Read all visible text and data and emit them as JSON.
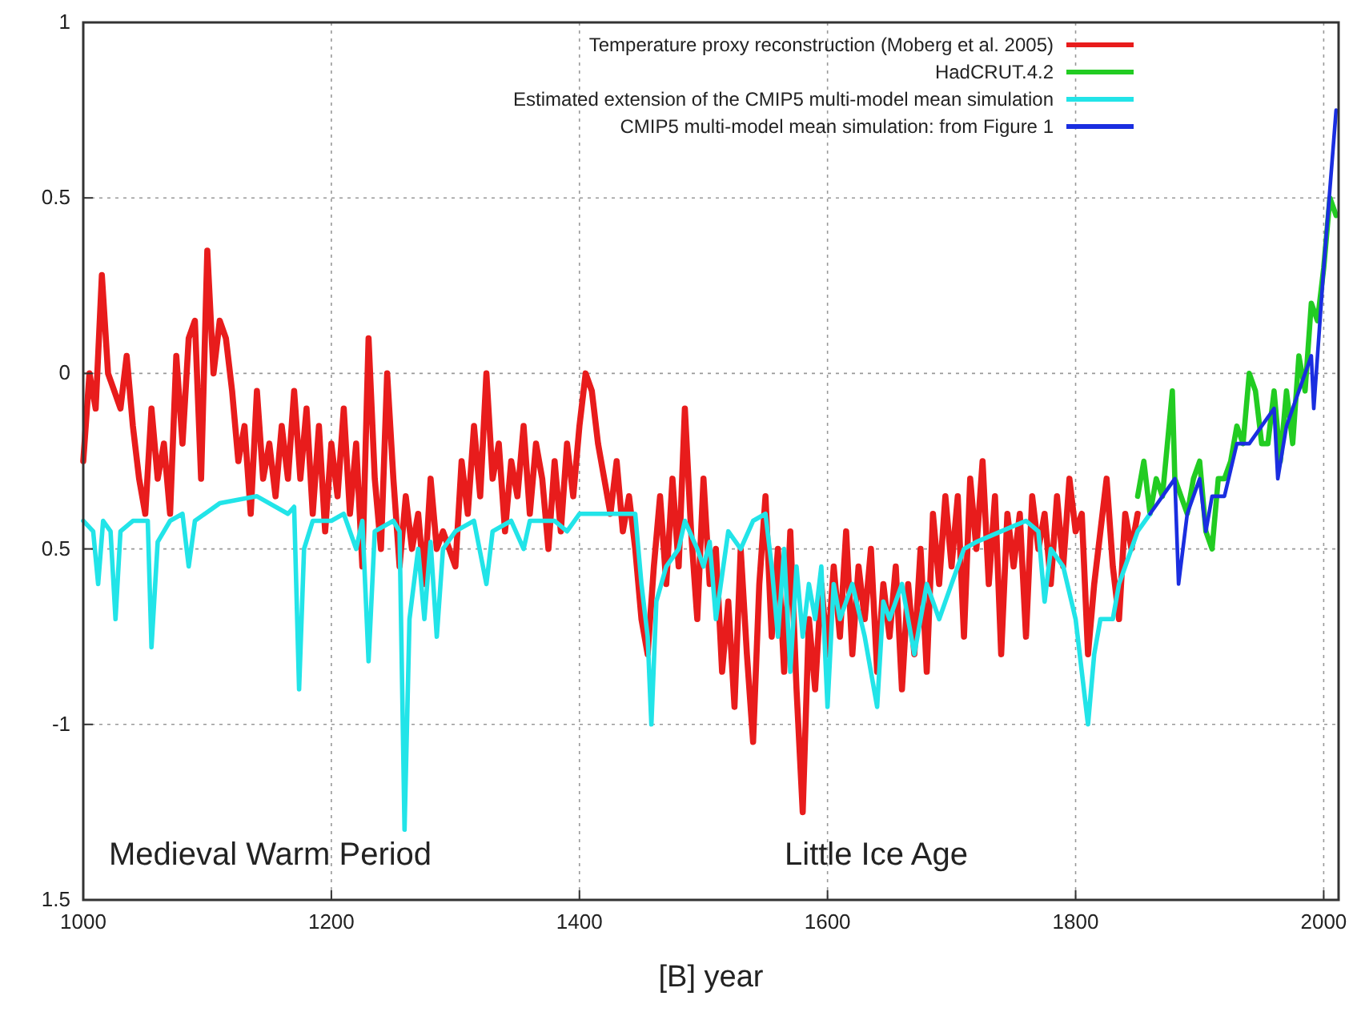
{
  "chart_data": {
    "type": "line",
    "xlabel": "[B]   year",
    "xlim": [
      1000,
      2012
    ],
    "xticks": [
      1000,
      1200,
      1400,
      1600,
      1800,
      2000
    ],
    "ylim": [
      -1.5,
      1
    ],
    "yticks": [
      {
        "value": -1.5,
        "label": "1.5"
      },
      -1,
      {
        "value": -0.5,
        "label": "0.5"
      },
      0,
      0.5,
      1
    ],
    "grid": true,
    "legend": "top right",
    "line_style": "solid",
    "marker": "none",
    "annotations": [
      "Medieval Warm Period",
      "Little Ice Age"
    ],
    "series": [
      {
        "name": "Temperature proxy reconstruction (Moberg et al. 2005)",
        "color": "#e81c1c",
        "x": [
          1000,
          1005,
          1010,
          1015,
          1020,
          1025,
          1030,
          1035,
          1040,
          1045,
          1050,
          1055,
          1060,
          1065,
          1070,
          1075,
          1080,
          1085,
          1090,
          1095,
          1100,
          1105,
          1110,
          1115,
          1120,
          1125,
          1130,
          1135,
          1140,
          1145,
          1150,
          1155,
          1160,
          1165,
          1170,
          1175,
          1180,
          1185,
          1190,
          1195,
          1200,
          1205,
          1210,
          1215,
          1220,
          1225,
          1230,
          1235,
          1240,
          1245,
          1250,
          1255,
          1260,
          1265,
          1270,
          1275,
          1280,
          1285,
          1290,
          1300,
          1305,
          1310,
          1315,
          1320,
          1325,
          1330,
          1335,
          1340,
          1345,
          1350,
          1355,
          1360,
          1365,
          1370,
          1375,
          1380,
          1385,
          1390,
          1395,
          1400,
          1405,
          1410,
          1415,
          1420,
          1425,
          1430,
          1435,
          1440,
          1445,
          1450,
          1455,
          1460,
          1465,
          1470,
          1475,
          1480,
          1485,
          1490,
          1495,
          1500,
          1505,
          1510,
          1515,
          1520,
          1525,
          1530,
          1535,
          1540,
          1545,
          1550,
          1555,
          1560,
          1565,
          1570,
          1575,
          1580,
          1585,
          1590,
          1595,
          1600,
          1605,
          1610,
          1615,
          1620,
          1625,
          1630,
          1635,
          1640,
          1645,
          1650,
          1655,
          1660,
          1665,
          1670,
          1675,
          1680,
          1685,
          1690,
          1695,
          1700,
          1705,
          1710,
          1715,
          1720,
          1725,
          1730,
          1735,
          1740,
          1745,
          1750,
          1755,
          1760,
          1765,
          1770,
          1775,
          1780,
          1785,
          1790,
          1795,
          1800,
          1805,
          1810,
          1815,
          1820,
          1825,
          1830,
          1835,
          1840,
          1845,
          1850
        ],
        "values": [
          -0.25,
          0.0,
          -0.1,
          0.28,
          0.0,
          -0.05,
          -0.1,
          0.05,
          -0.15,
          -0.3,
          -0.4,
          -0.1,
          -0.3,
          -0.2,
          -0.4,
          0.05,
          -0.2,
          0.1,
          0.15,
          -0.3,
          0.35,
          0.0,
          0.15,
          0.1,
          -0.05,
          -0.25,
          -0.15,
          -0.4,
          -0.05,
          -0.3,
          -0.2,
          -0.35,
          -0.15,
          -0.3,
          -0.05,
          -0.3,
          -0.1,
          -0.4,
          -0.15,
          -0.45,
          -0.2,
          -0.35,
          -0.1,
          -0.4,
          -0.2,
          -0.55,
          0.1,
          -0.3,
          -0.5,
          0.0,
          -0.3,
          -0.55,
          -0.35,
          -0.5,
          -0.4,
          -0.6,
          -0.3,
          -0.5,
          -0.45,
          -0.55,
          -0.25,
          -0.4,
          -0.15,
          -0.35,
          0.0,
          -0.3,
          -0.2,
          -0.45,
          -0.25,
          -0.35,
          -0.15,
          -0.4,
          -0.2,
          -0.3,
          -0.5,
          -0.25,
          -0.45,
          -0.2,
          -0.35,
          -0.15,
          0.0,
          -0.05,
          -0.2,
          -0.3,
          -0.4,
          -0.25,
          -0.45,
          -0.35,
          -0.5,
          -0.7,
          -0.8,
          -0.55,
          -0.35,
          -0.6,
          -0.3,
          -0.55,
          -0.1,
          -0.45,
          -0.7,
          -0.3,
          -0.6,
          -0.5,
          -0.85,
          -0.65,
          -0.95,
          -0.5,
          -0.8,
          -1.05,
          -0.6,
          -0.35,
          -0.75,
          -0.5,
          -0.85,
          -0.45,
          -0.9,
          -1.25,
          -0.7,
          -0.9,
          -0.6,
          -0.8,
          -0.55,
          -0.75,
          -0.45,
          -0.8,
          -0.55,
          -0.7,
          -0.5,
          -0.85,
          -0.6,
          -0.75,
          -0.55,
          -0.9,
          -0.6,
          -0.8,
          -0.5,
          -0.85,
          -0.4,
          -0.6,
          -0.35,
          -0.55,
          -0.35,
          -0.75,
          -0.3,
          -0.5,
          -0.25,
          -0.6,
          -0.35,
          -0.8,
          -0.4,
          -0.55,
          -0.4,
          -0.75,
          -0.35,
          -0.5,
          -0.4,
          -0.6,
          -0.35,
          -0.55,
          -0.3,
          -0.45,
          -0.4,
          -0.8,
          -0.6,
          -0.45,
          -0.3,
          -0.55,
          -0.7,
          -0.4,
          -0.5,
          -0.4
        ]
      },
      {
        "name": "HadCRUT.4.2",
        "color": "#22cc22",
        "x": [
          1850,
          1855,
          1860,
          1865,
          1870,
          1878,
          1880,
          1885,
          1890,
          1895,
          1900,
          1905,
          1910,
          1915,
          1920,
          1925,
          1930,
          1935,
          1940,
          1945,
          1950,
          1955,
          1960,
          1965,
          1970,
          1975,
          1980,
          1985,
          1990,
          1995,
          2000,
          2005,
          2010
        ],
        "values": [
          -0.35,
          -0.25,
          -0.4,
          -0.3,
          -0.35,
          -0.05,
          -0.3,
          -0.35,
          -0.4,
          -0.3,
          -0.25,
          -0.45,
          -0.5,
          -0.3,
          -0.3,
          -0.25,
          -0.15,
          -0.2,
          0.0,
          -0.05,
          -0.2,
          -0.2,
          -0.05,
          -0.25,
          -0.05,
          -0.2,
          0.05,
          -0.05,
          0.2,
          0.15,
          0.3,
          0.5,
          0.45
        ]
      },
      {
        "name": "Estimated extension of the CMIP5 multi-model mean simulation",
        "color": "#22e4e8",
        "x": [
          1000,
          1008,
          1012,
          1016,
          1022,
          1026,
          1030,
          1040,
          1052,
          1055,
          1060,
          1070,
          1080,
          1085,
          1090,
          1110,
          1140,
          1165,
          1170,
          1174,
          1178,
          1185,
          1200,
          1210,
          1220,
          1225,
          1230,
          1235,
          1250,
          1255,
          1259,
          1263,
          1270,
          1275,
          1280,
          1285,
          1290,
          1300,
          1315,
          1325,
          1330,
          1345,
          1355,
          1360,
          1380,
          1390,
          1400,
          1445,
          1450,
          1455,
          1458,
          1462,
          1470,
          1480,
          1485,
          1495,
          1500,
          1505,
          1510,
          1520,
          1530,
          1540,
          1550,
          1555,
          1560,
          1565,
          1570,
          1575,
          1580,
          1585,
          1590,
          1595,
          1600,
          1605,
          1610,
          1620,
          1630,
          1640,
          1645,
          1650,
          1660,
          1670,
          1680,
          1690,
          1700,
          1710,
          1720,
          1740,
          1760,
          1770,
          1775,
          1780,
          1790,
          1800,
          1810,
          1815,
          1820,
          1830,
          1835,
          1840,
          1850,
          1860
        ],
        "values": [
          -0.42,
          -0.45,
          -0.6,
          -0.42,
          -0.45,
          -0.7,
          -0.45,
          -0.42,
          -0.42,
          -0.78,
          -0.48,
          -0.42,
          -0.4,
          -0.55,
          -0.42,
          -0.37,
          -0.35,
          -0.4,
          -0.38,
          -0.9,
          -0.5,
          -0.42,
          -0.42,
          -0.4,
          -0.5,
          -0.42,
          -0.82,
          -0.45,
          -0.42,
          -0.45,
          -1.3,
          -0.7,
          -0.5,
          -0.7,
          -0.48,
          -0.75,
          -0.5,
          -0.45,
          -0.42,
          -0.6,
          -0.45,
          -0.42,
          -0.5,
          -0.42,
          -0.42,
          -0.45,
          -0.4,
          -0.4,
          -0.6,
          -0.75,
          -1.0,
          -0.65,
          -0.55,
          -0.5,
          -0.42,
          -0.5,
          -0.55,
          -0.48,
          -0.7,
          -0.45,
          -0.5,
          -0.42,
          -0.4,
          -0.55,
          -0.75,
          -0.5,
          -0.85,
          -0.55,
          -0.75,
          -0.6,
          -0.7,
          -0.55,
          -0.95,
          -0.6,
          -0.7,
          -0.6,
          -0.75,
          -0.95,
          -0.65,
          -0.7,
          -0.6,
          -0.8,
          -0.6,
          -0.7,
          -0.6,
          -0.5,
          -0.48,
          -0.45,
          -0.42,
          -0.45,
          -0.65,
          -0.5,
          -0.55,
          -0.7,
          -1.0,
          -0.8,
          -0.7,
          -0.7,
          -0.6,
          -0.55,
          -0.45,
          -0.4
        ]
      },
      {
        "name": "CMIP5 multi-model mean simulation: from Figure 1",
        "color": "#1a2ee0",
        "x": [
          1860,
          1870,
          1880,
          1883,
          1890,
          1900,
          1905,
          1910,
          1920,
          1930,
          1940,
          1950,
          1960,
          1963,
          1970,
          1980,
          1990,
          1992,
          2000,
          2010
        ],
        "values": [
          -0.4,
          -0.35,
          -0.3,
          -0.6,
          -0.4,
          -0.3,
          -0.45,
          -0.35,
          -0.35,
          -0.2,
          -0.2,
          -0.15,
          -0.1,
          -0.3,
          -0.15,
          -0.05,
          0.05,
          -0.1,
          0.3,
          0.75
        ]
      }
    ]
  }
}
